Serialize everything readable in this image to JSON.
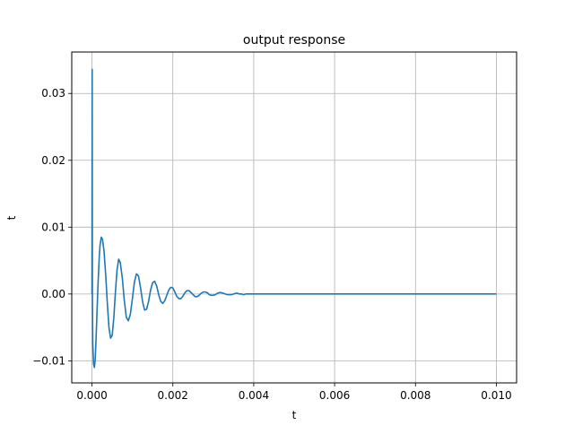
{
  "chart_data": {
    "type": "line",
    "title": "output response",
    "xlabel": "t",
    "ylabel": "t",
    "xlim": [
      -0.0005,
      0.0105
    ],
    "ylim": [
      -0.0133,
      0.0362
    ],
    "x_ticks": [
      0.0,
      0.002,
      0.004,
      0.006,
      0.008,
      0.01
    ],
    "x_tick_labels": [
      "0.000",
      "0.002",
      "0.004",
      "0.006",
      "0.008",
      "0.010"
    ],
    "y_ticks": [
      -0.01,
      0.0,
      0.01,
      0.02,
      0.03
    ],
    "y_tick_labels": [
      "−0.01",
      "0.00",
      "0.01",
      "0.02",
      "0.03"
    ],
    "grid": true,
    "line_color": "#1f77b4",
    "series": [
      {
        "x": [
          0,
          5e-06,
          1e-05,
          2e-05,
          4e-05,
          6e-05,
          8e-05,
          0.0001,
          0.00012,
          0.00015,
          0.00018,
          0.0002,
          0.00023,
          0.00026,
          0.0003,
          0.00034,
          0.00038,
          0.00042,
          0.00046,
          0.0005,
          0.00054,
          0.00058,
          0.00062,
          0.00066,
          0.0007,
          0.00075,
          0.0008,
          0.00085,
          0.0009,
          0.00095,
          0.001,
          0.00105,
          0.0011,
          0.00115,
          0.0012,
          0.00125,
          0.0013,
          0.00135,
          0.0014,
          0.00145,
          0.0015,
          0.00155,
          0.0016,
          0.00165,
          0.0017,
          0.00175,
          0.0018,
          0.00185,
          0.0019,
          0.00195,
          0.002,
          0.00205,
          0.0021,
          0.00215,
          0.0022,
          0.00225,
          0.0023,
          0.00235,
          0.0024,
          0.00245,
          0.0025,
          0.00255,
          0.0026,
          0.00265,
          0.0027,
          0.00275,
          0.0028,
          0.00285,
          0.0029,
          0.00295,
          0.003,
          0.00305,
          0.0031,
          0.00315,
          0.0032,
          0.00325,
          0.0033,
          0.00335,
          0.0034,
          0.00345,
          0.0035,
          0.00355,
          0.0036,
          0.00365,
          0.0037,
          0.00375,
          0.0038,
          0.00385,
          0.0039,
          0.00395,
          0.004,
          0.00405,
          0.0041,
          0.00415,
          0.0042,
          0.00425,
          0.0043,
          0.00435,
          0.0044,
          0.00445,
          0.0045,
          0.00455,
          0.0046,
          0.00465,
          0.0047,
          0.00475,
          0.0048,
          0.00485,
          0.0049,
          0.00495,
          0.005,
          0.0052,
          0.0054,
          0.0056,
          0.0058,
          0.006,
          0.0062,
          0.0064,
          0.0066,
          0.0068,
          0.007,
          0.0075,
          0.008,
          0.0085,
          0.009,
          0.0095,
          0.01
        ],
        "y": [
          0,
          0.0336,
          0.0,
          -0.0075,
          -0.0105,
          -0.011,
          -0.0098,
          -0.007,
          -0.0035,
          0.0015,
          0.0055,
          0.0073,
          0.0085,
          0.0082,
          0.0063,
          0.0028,
          -0.0014,
          -0.005,
          -0.0066,
          -0.0062,
          -0.0036,
          0.0003,
          0.0036,
          0.0052,
          0.0047,
          0.0024,
          -0.001,
          -0.0035,
          -0.004,
          -0.003,
          -0.0007,
          0.0018,
          0.003,
          0.0027,
          0.001,
          -0.0011,
          -0.0024,
          -0.0023,
          -0.0011,
          0.0006,
          0.0017,
          0.0019,
          0.0012,
          -0.0001,
          -0.0011,
          -0.0014,
          -0.001,
          -0.0002,
          0.0006,
          0.001,
          0.0009,
          0.0003,
          -0.0004,
          -0.0007,
          -0.0007,
          -0.0003,
          0.0002,
          0.0005,
          0.0005,
          0.0002,
          -0.0001,
          -0.0004,
          -0.0004,
          -0.0002,
          0.0001,
          0.0003,
          0.0003,
          0.0002,
          -0.0001,
          -0.0002,
          -0.0002,
          -0.0001,
          0.0001,
          0.0002,
          0.0002,
          0.0001,
          0.0,
          -0.0001,
          -0.0001,
          -0.0001,
          0.0,
          0.0001,
          0.0001,
          0.0,
          0.0,
          -0.0001,
          0.0,
          0.0,
          0.0,
          0.0,
          0.0,
          0.0,
          0.0,
          0.0,
          0.0,
          0.0,
          0.0,
          0.0,
          0.0,
          0.0,
          0.0,
          0.0,
          0.0,
          0.0,
          0.0,
          0.0,
          0.0,
          0.0,
          0.0,
          0.0,
          0.0,
          0.0,
          0.0,
          0.0,
          0.0,
          0.0,
          0.0,
          0.0,
          0.0,
          0.0,
          0.0,
          0.0,
          0.0,
          0.0,
          0.0,
          0.0,
          0.0
        ]
      }
    ]
  }
}
